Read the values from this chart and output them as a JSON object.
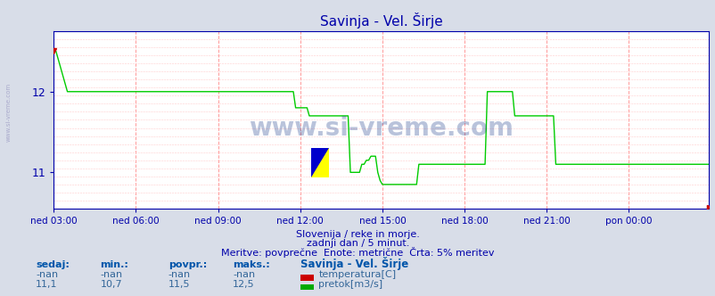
{
  "title": "Savinja - Vel. Širje",
  "bg_color": "#d8dde8",
  "plot_bg_color": "#ffffff",
  "grid_color_major": "#ff9999",
  "line_color_flow": "#00cc00",
  "line_color_temp": "#cc0000",
  "tick_color": "#0000aa",
  "title_color": "#0000aa",
  "watermark": "www.si-vreme.com",
  "subtitle1": "Slovenija / reke in morje.",
  "subtitle2": "zadnji dan / 5 minut.",
  "subtitle3": "Meritve: povprečne  Enote: metrične  Črta: 5% meritev",
  "legend_title": "Savinja - Vel. Širje",
  "legend_temp": "temperatura[C]",
  "legend_flow": "pretok[m3/s]",
  "table_headers": [
    "sedaj:",
    "min.:",
    "povpr.:",
    "maks.:"
  ],
  "table_temp": [
    "-nan",
    "-nan",
    "-nan",
    "-nan"
  ],
  "table_flow": [
    "11,1",
    "10,7",
    "11,5",
    "12,5"
  ],
  "ylim": [
    10.55,
    12.75
  ],
  "yticks": [
    11,
    12
  ],
  "flow_data": [
    12.5,
    12.5,
    12.4,
    12.3,
    12.2,
    12.1,
    12.0,
    12.0,
    12.0,
    12.0,
    12.0,
    12.0,
    12.0,
    12.0,
    12.0,
    12.0,
    12.0,
    12.0,
    12.0,
    12.0,
    12.0,
    12.0,
    12.0,
    12.0,
    12.0,
    12.0,
    12.0,
    12.0,
    12.0,
    12.0,
    12.0,
    12.0,
    12.0,
    12.0,
    12.0,
    12.0,
    12.0,
    12.0,
    12.0,
    12.0,
    12.0,
    12.0,
    12.0,
    12.0,
    12.0,
    12.0,
    12.0,
    12.0,
    12.0,
    12.0,
    12.0,
    12.0,
    12.0,
    12.0,
    12.0,
    12.0,
    12.0,
    12.0,
    12.0,
    12.0,
    12.0,
    12.0,
    12.0,
    12.0,
    12.0,
    12.0,
    12.0,
    12.0,
    12.0,
    12.0,
    12.0,
    12.0,
    12.0,
    12.0,
    12.0,
    12.0,
    12.0,
    12.0,
    12.0,
    12.0,
    12.0,
    12.0,
    12.0,
    12.0,
    12.0,
    12.0,
    12.0,
    12.0,
    12.0,
    12.0,
    12.0,
    12.0,
    12.0,
    12.0,
    12.0,
    12.0,
    12.0,
    12.0,
    12.0,
    12.0,
    12.0,
    12.0,
    12.0,
    12.0,
    12.0,
    12.0,
    11.8,
    11.8,
    11.8,
    11.8,
    11.8,
    11.8,
    11.7,
    11.7,
    11.7,
    11.7,
    11.7,
    11.7,
    11.7,
    11.7,
    11.7,
    11.7,
    11.7,
    11.7,
    11.7,
    11.7,
    11.7,
    11.7,
    11.7,
    11.7,
    11.0,
    11.0,
    11.0,
    11.0,
    11.0,
    11.1,
    11.1,
    11.15,
    11.15,
    11.2,
    11.2,
    11.2,
    11.0,
    10.9,
    10.85,
    10.85,
    10.85,
    10.85,
    10.85,
    10.85,
    10.85,
    10.85,
    10.85,
    10.85,
    10.85,
    10.85,
    10.85,
    10.85,
    10.85,
    10.85,
    11.1,
    11.1,
    11.1,
    11.1,
    11.1,
    11.1,
    11.1,
    11.1,
    11.1,
    11.1,
    11.1,
    11.1,
    11.1,
    11.1,
    11.1,
    11.1,
    11.1,
    11.1,
    11.1,
    11.1,
    11.1,
    11.1,
    11.1,
    11.1,
    11.1,
    11.1,
    11.1,
    11.1,
    11.1,
    11.1,
    12.0,
    12.0,
    12.0,
    12.0,
    12.0,
    12.0,
    12.0,
    12.0,
    12.0,
    12.0,
    12.0,
    12.0,
    11.7,
    11.7,
    11.7,
    11.7,
    11.7,
    11.7,
    11.7,
    11.7,
    11.7,
    11.7,
    11.7,
    11.7,
    11.7,
    11.7,
    11.7,
    11.7,
    11.7,
    11.7,
    11.1,
    11.1,
    11.1,
    11.1,
    11.1,
    11.1,
    11.1,
    11.1,
    11.1,
    11.1,
    11.1,
    11.1,
    11.1,
    11.1,
    11.1,
    11.1,
    11.1,
    11.1,
    11.1,
    11.1,
    11.1,
    11.1,
    11.1,
    11.1,
    11.1,
    11.1,
    11.1,
    11.1,
    11.1,
    11.1,
    11.1,
    11.1,
    11.1,
    11.1,
    11.1,
    11.1,
    11.1,
    11.1,
    11.1,
    11.1,
    11.1,
    11.1,
    11.1,
    11.1,
    11.1,
    11.1,
    11.1,
    11.1,
    11.1,
    11.1,
    11.1,
    11.1,
    11.1,
    11.1,
    11.1,
    11.1,
    11.1,
    11.1,
    11.1,
    11.1,
    11.1,
    11.1,
    11.1,
    11.1,
    11.1,
    11.1,
    11.1,
    11.1
  ],
  "x_tick_positions": [
    0,
    36,
    72,
    108,
    144,
    180,
    216,
    252
  ],
  "x_tick_labels": [
    "ned 03:00",
    "ned 06:00",
    "ned 09:00",
    "ned 12:00",
    "ned 15:00",
    "ned 18:00",
    "ned 21:00",
    "pon 00:00"
  ],
  "left_label": "www.si-vreme.com"
}
